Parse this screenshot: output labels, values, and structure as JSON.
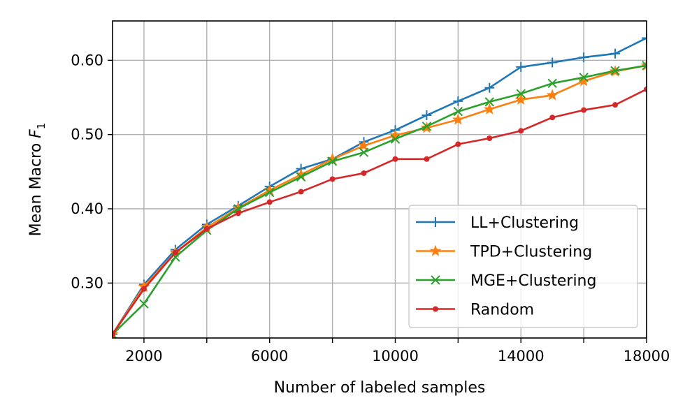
{
  "chart_data": {
    "type": "line",
    "xlabel": "Number of labeled samples",
    "ylabel_main": "Mean Macro ",
    "ylabel_var": "F",
    "ylabel_sub": "1",
    "xlim": [
      1000,
      18000
    ],
    "ylim": [
      0.226,
      0.653
    ],
    "x_ticks": [
      2000,
      4000,
      6000,
      8000,
      10000,
      12000,
      14000,
      16000,
      18000
    ],
    "x_tick_labels": [
      "2000",
      "",
      "6000",
      "",
      "10000",
      "",
      "14000",
      "",
      "18000"
    ],
    "y_ticks": [
      0.3,
      0.4,
      0.5,
      0.6
    ],
    "y_tick_labels": [
      "0.30",
      "0.40",
      "0.50",
      "0.60"
    ],
    "grid": true,
    "legend_position": "lower-right",
    "x": [
      1000,
      2000,
      3000,
      4000,
      5000,
      6000,
      7000,
      8000,
      9000,
      10000,
      11000,
      12000,
      13000,
      14000,
      15000,
      16000,
      17000,
      18000
    ],
    "series": [
      {
        "name": "LL+Clustering",
        "color": "#1f77b4",
        "marker": "plus",
        "values": [
          0.231,
          0.298,
          0.345,
          0.379,
          0.404,
          0.43,
          0.454,
          0.467,
          0.49,
          0.506,
          0.526,
          0.545,
          0.563,
          0.591,
          0.597,
          0.604,
          0.609,
          0.63
        ]
      },
      {
        "name": "TPD+Clustering",
        "color": "#ff7f0e",
        "marker": "star",
        "values": [
          0.231,
          0.295,
          0.341,
          0.375,
          0.401,
          0.425,
          0.446,
          0.467,
          0.485,
          0.499,
          0.509,
          0.52,
          0.534,
          0.547,
          0.553,
          0.572,
          0.585,
          0.593
        ]
      },
      {
        "name": "MGE+Clustering",
        "color": "#2ca02c",
        "marker": "x",
        "values": [
          0.231,
          0.272,
          0.335,
          0.371,
          0.4,
          0.422,
          0.443,
          0.464,
          0.476,
          0.494,
          0.511,
          0.531,
          0.544,
          0.555,
          0.569,
          0.577,
          0.586,
          0.593
        ]
      },
      {
        "name": "Random",
        "color": "#d62728",
        "marker": "dot",
        "values": [
          0.231,
          0.292,
          0.341,
          0.373,
          0.394,
          0.409,
          0.423,
          0.44,
          0.448,
          0.467,
          0.467,
          0.487,
          0.495,
          0.505,
          0.523,
          0.533,
          0.54,
          0.561
        ]
      }
    ]
  }
}
